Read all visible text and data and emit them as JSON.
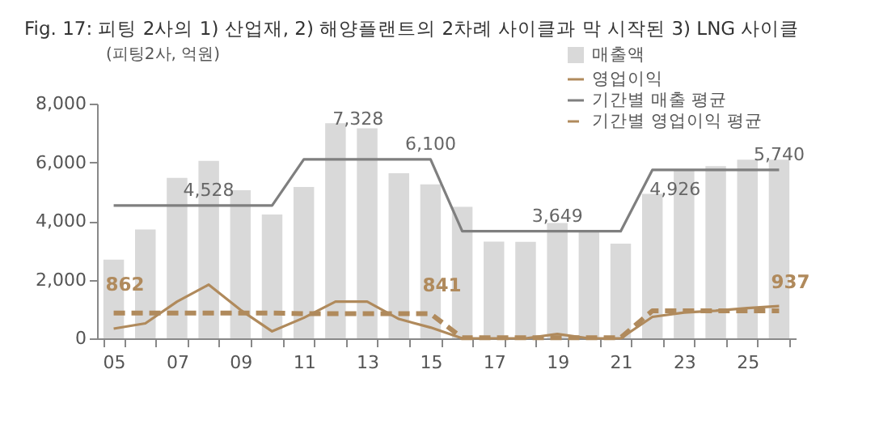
{
  "chart_data": {
    "type": "bar",
    "title": "Fig. 17:  피팅 2사의 1) 산업재, 2) 해양플랜트의 2차례 사이클과 막 시작된 3) LNG 사이클",
    "ylabel": "(피팅2사, 억원)",
    "categories": [
      "05",
      null,
      "07",
      null,
      "09",
      null,
      "11",
      null,
      "13",
      null,
      "15",
      null,
      "17",
      null,
      "19",
      null,
      "21",
      null,
      "23",
      null,
      "25",
      null
    ],
    "ylim": [
      0,
      8000
    ],
    "yticks": [
      0,
      {
        "value": 2000,
        "label": "2,000"
      },
      {
        "value": 4000,
        "label": "4,000"
      },
      {
        "value": 6000,
        "label": "6,000"
      },
      {
        "value": 8000,
        "label": "8,000"
      }
    ],
    "grid": false,
    "legend": "top right",
    "series": [
      {
        "name": "매출액",
        "color": "#d9d9d9",
        "values": [
          2680,
          3710,
          5470,
          6050,
          5050,
          4220,
          5160,
          7328,
          7160,
          5630,
          5250,
          4480,
          3300,
          3290,
          3930,
          3630,
          3230,
          4926,
          5740,
          5870,
          6090,
          6090
        ],
        "value_labels": [
          null,
          null,
          null,
          null,
          null,
          null,
          null,
          "7,328",
          null,
          null,
          null,
          null,
          null,
          null,
          null,
          null,
          null,
          "4,926",
          null,
          null,
          null,
          null
        ]
      },
      {
        "name": "영업이익",
        "type": "line",
        "color": "#b08a5c",
        "line_style": "solid",
        "values": [
          330,
          510,
          1250,
          1830,
          970,
          240,
          700,
          1250,
          1250,
          660,
          370,
          0,
          0,
          0,
          150,
          0,
          0,
          730,
          880,
          940,
          1030,
          1100
        ]
      },
      {
        "name": "기간별 매출 평균",
        "type": "line",
        "color": "#7f7f7f",
        "line_style": "solid",
        "values": [
          4528,
          4528,
          4528,
          4528,
          4528,
          4528,
          6100,
          6100,
          6100,
          6100,
          6100,
          3649,
          3649,
          3649,
          3649,
          3649,
          3649,
          5740,
          5740,
          5740,
          5740,
          5740
        ],
        "value_labels": [
          null,
          null,
          null,
          "4,528",
          null,
          null,
          null,
          null,
          null,
          null,
          "6,100",
          null,
          null,
          null,
          "3,649",
          null,
          null,
          null,
          null,
          null,
          null,
          "5,740"
        ]
      },
      {
        "name": "기간별 영업이익 평균",
        "type": "line",
        "color": "#b08a5c",
        "line_style": "dashed",
        "values": [
          862,
          862,
          862,
          862,
          862,
          862,
          841,
          841,
          841,
          841,
          841,
          20,
          20,
          20,
          20,
          20,
          20,
          937,
          937,
          937,
          937,
          937
        ],
        "value_labels": [
          "862",
          null,
          null,
          null,
          null,
          null,
          null,
          null,
          null,
          null,
          "841",
          null,
          null,
          null,
          null,
          null,
          null,
          null,
          null,
          null,
          null,
          "937"
        ]
      }
    ]
  }
}
